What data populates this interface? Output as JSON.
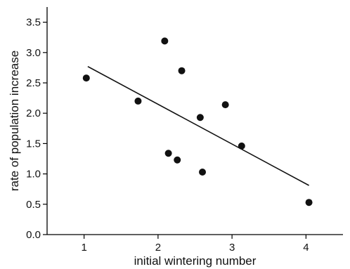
{
  "chart_data": {
    "type": "scatter",
    "title": "",
    "xlabel": "initial wintering number",
    "ylabel": "rate of population increase",
    "xlim": [
      0.5,
      4.5
    ],
    "ylim": [
      0.0,
      3.75
    ],
    "xticks": [
      1,
      2,
      3,
      4
    ],
    "yticks": [
      0.0,
      0.5,
      1.0,
      1.5,
      2.0,
      2.5,
      3.0,
      3.5
    ],
    "xtick_labels": [
      "1",
      "2",
      "3",
      "4"
    ],
    "ytick_labels": [
      "0.0",
      "0.5",
      "1.0",
      "1.5",
      "2.0",
      "2.5",
      "3.0",
      "3.5"
    ],
    "grid": false,
    "legend": "none",
    "series": [
      {
        "points": [
          {
            "x": 1.03,
            "y": 2.58
          },
          {
            "x": 1.73,
            "y": 2.2
          },
          {
            "x": 2.09,
            "y": 3.19
          },
          {
            "x": 2.14,
            "y": 1.34
          },
          {
            "x": 2.26,
            "y": 1.23
          },
          {
            "x": 2.32,
            "y": 2.7
          },
          {
            "x": 2.57,
            "y": 1.93
          },
          {
            "x": 2.6,
            "y": 1.03
          },
          {
            "x": 2.91,
            "y": 2.14
          },
          {
            "x": 3.13,
            "y": 1.46
          },
          {
            "x": 4.04,
            "y": 0.53
          }
        ]
      }
    ],
    "trendline": {
      "x": [
        1.05,
        4.04
      ],
      "y": [
        2.77,
        0.81
      ]
    }
  }
}
